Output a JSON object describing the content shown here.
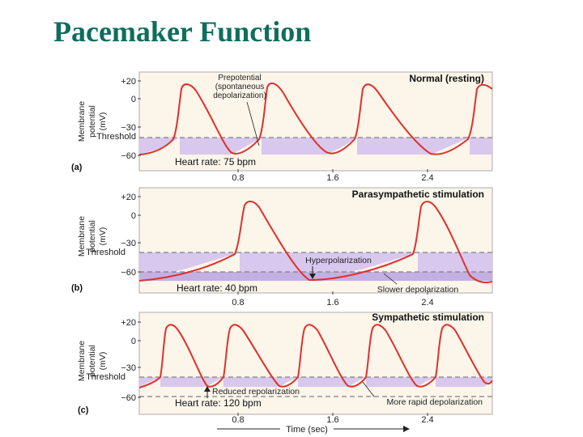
{
  "page": {
    "title": "Pacemaker Function"
  },
  "colors": {
    "title": "#0f6e5e",
    "plot_bg": "#fbf5ea",
    "shade": "#d8c8ee",
    "trace": "#e0302a",
    "dash": "#808080"
  },
  "axis": {
    "ylabel_lines": [
      "Membrane",
      "potential",
      "(mV)"
    ],
    "threshold_label": "Threshold",
    "xlabel": "Time (sec)"
  },
  "panels": [
    {
      "letter": "(a)",
      "title": "Normal (resting)",
      "y_ticks": [
        "+20",
        "0",
        "−30",
        "−60"
      ],
      "x_ticks": [
        "0.8",
        "1.6",
        "2.4"
      ],
      "heart_rate": "Heart rate: 75 bpm",
      "annotations": [
        "Prepotential",
        "(spontaneous",
        "depolarization)"
      ]
    },
    {
      "letter": "(b)",
      "title": "Parasympathetic stimulation",
      "y_ticks": [
        "+20",
        "0",
        "−30",
        "−60"
      ],
      "x_ticks": [
        "0.8",
        "1.6",
        "2.4"
      ],
      "heart_rate": "Heart rate: 40 bpm",
      "annotations": [
        "Hyperpolarization",
        "Slower depolarization"
      ]
    },
    {
      "letter": "(c)",
      "title": "Sympathetic stimulation",
      "y_ticks": [
        "+20",
        "0",
        "−30",
        "−60"
      ],
      "x_ticks": [
        "0.8",
        "1.6",
        "2.4"
      ],
      "heart_rate": "Heart rate: 120 bpm",
      "annotations": [
        "Reduced repolarization",
        "More rapid depolarization"
      ]
    }
  ]
}
